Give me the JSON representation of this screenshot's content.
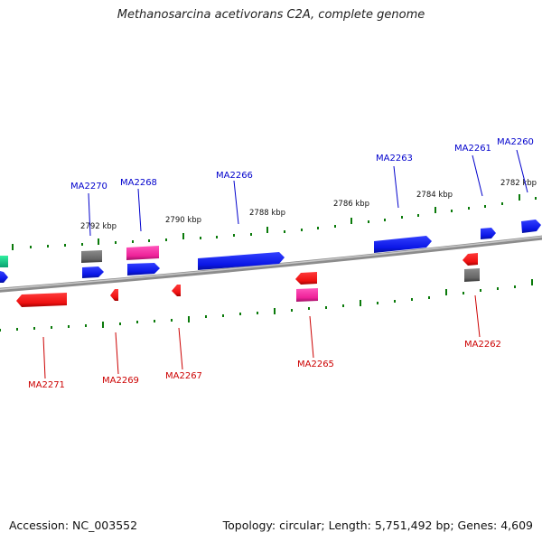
{
  "title": "Methanosarcina acetivorans C2A, complete genome",
  "footer": {
    "accession": "Accession: NC_003552",
    "summary": "Topology: circular; Length: 5,751,492 bp; Genes: 4,609"
  },
  "colors": {
    "forward_label": "#0000cc",
    "reverse_label": "#cc0000",
    "backbone": "#7a7a7a",
    "ticks": "#0a7a0a",
    "blue_gene": "#0a16e6",
    "red_gene": "#ee1111",
    "pink_gene": "#ee2299",
    "gray_gene": "#6a6a6a",
    "green_gene": "#10d08a"
  },
  "scale_labels": [
    "2782 kbp",
    "2784 kbp",
    "2786 kbp",
    "2788 kbp",
    "2790 kbp",
    "2792 kbp"
  ],
  "forward_labels": [
    "MA2260",
    "MA2261",
    "MA2263",
    "MA2266",
    "MA2268",
    "MA2270"
  ],
  "reverse_labels": [
    "MA2262",
    "MA2265",
    "MA2267",
    "MA2269",
    "MA2271"
  ]
}
